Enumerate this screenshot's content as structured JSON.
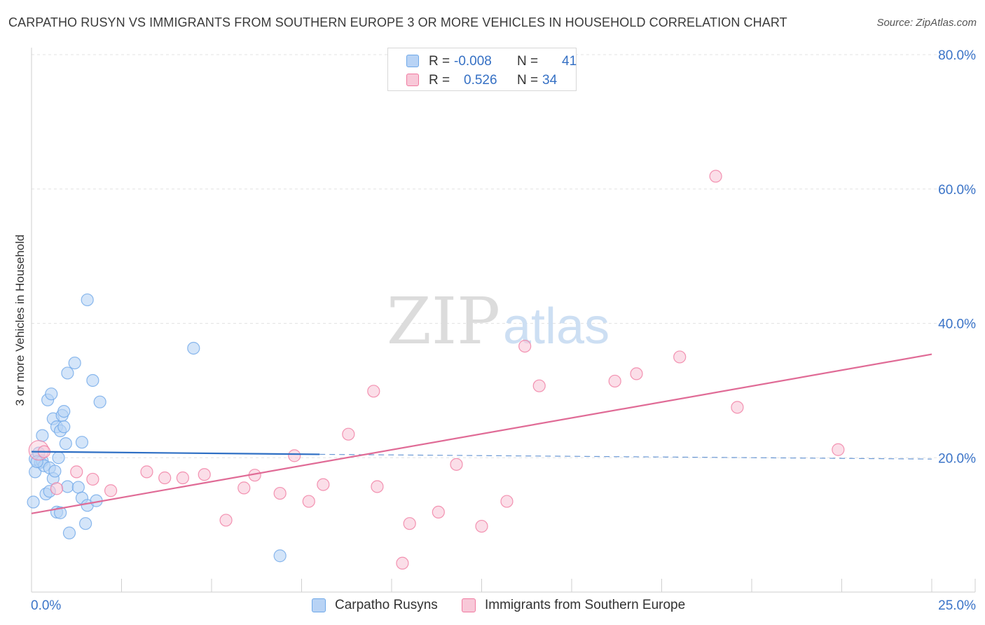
{
  "header": {
    "title": "CARPATHO RUSYN VS IMMIGRANTS FROM SOUTHERN EUROPE 3 OR MORE VEHICLES IN HOUSEHOLD CORRELATION CHART",
    "source": "Source: ZipAtlas.com"
  },
  "watermark": {
    "zip": "ZIP",
    "atlas": "atlas"
  },
  "legend": {
    "rows": [
      {
        "r_label": "R =",
        "r_value": "-0.008",
        "n_label": "N =",
        "n_value": "41"
      },
      {
        "r_label": "R =",
        "r_value": "0.526",
        "n_label": "N =",
        "n_value": "34"
      }
    ]
  },
  "colors": {
    "blue": "#6fa8e8",
    "blue_fill": "#b8d3f5",
    "blue_line": "#2e6fc4",
    "pink": "#f07aa0",
    "pink_fill": "#f8c8d8",
    "pink_line": "#e06b96",
    "tick_text": "#3b74c8",
    "grid": "#e3e3e3"
  },
  "chart_data": {
    "type": "scatter",
    "title": "CARPATHO RUSYN VS IMMIGRANTS FROM SOUTHERN EUROPE 3 OR MORE VEHICLES IN HOUSEHOLD CORRELATION CHART",
    "xlabel": "",
    "ylabel": "3 or more Vehicles in Household",
    "xlim": [
      0,
      25
    ],
    "ylim": [
      0,
      80
    ],
    "x_tick_labels": [
      "0.0%",
      "25.0%"
    ],
    "y_ticks": [
      20,
      40,
      60,
      80
    ],
    "y_tick_labels": [
      "20.0%",
      "40.0%",
      "60.0%",
      "80.0%"
    ],
    "legend_position": "bottom",
    "series": [
      {
        "name": "Carpatho Rusyns",
        "color": "#6fa8e8",
        "r": -0.008,
        "n": 41,
        "trend": {
          "x": [
            0,
            8
          ],
          "y": [
            20.9,
            20.5
          ],
          "dashed_to": 25,
          "dashed_y_end": 19.8
        },
        "points": [
          [
            0.05,
            13.4
          ],
          [
            0.1,
            17.9
          ],
          [
            0.1,
            19.8
          ],
          [
            0.2,
            20.7
          ],
          [
            0.25,
            19.3
          ],
          [
            0.3,
            23.3
          ],
          [
            0.3,
            19.5
          ],
          [
            0.4,
            14.6
          ],
          [
            0.35,
            18.8
          ],
          [
            0.5,
            15.0
          ],
          [
            0.45,
            28.6
          ],
          [
            0.55,
            29.5
          ],
          [
            0.5,
            18.5
          ],
          [
            0.6,
            25.8
          ],
          [
            0.6,
            16.9
          ],
          [
            0.65,
            18.0
          ],
          [
            0.7,
            11.9
          ],
          [
            0.75,
            20.0
          ],
          [
            0.7,
            24.6
          ],
          [
            0.8,
            11.8
          ],
          [
            0.8,
            24.0
          ],
          [
            0.85,
            26.3
          ],
          [
            0.9,
            26.9
          ],
          [
            0.9,
            24.6
          ],
          [
            0.95,
            22.1
          ],
          [
            1.0,
            32.6
          ],
          [
            1.0,
            15.7
          ],
          [
            1.05,
            8.8
          ],
          [
            1.2,
            34.1
          ],
          [
            1.3,
            15.6
          ],
          [
            1.4,
            14.0
          ],
          [
            1.4,
            22.3
          ],
          [
            1.5,
            10.2
          ],
          [
            1.55,
            12.9
          ],
          [
            1.55,
            43.5
          ],
          [
            1.7,
            31.5
          ],
          [
            1.8,
            13.6
          ],
          [
            1.9,
            28.3
          ],
          [
            4.5,
            36.3
          ],
          [
            6.9,
            5.4
          ],
          [
            0.15,
            19.4
          ]
        ]
      },
      {
        "name": "Immigrants from Southern Europe",
        "color": "#f07aa0",
        "r": 0.526,
        "n": 34,
        "trend": {
          "x": [
            0,
            25
          ],
          "y": [
            11.7,
            35.4
          ]
        },
        "points": [
          [
            0.2,
            21.1
          ],
          [
            0.7,
            15.4
          ],
          [
            1.25,
            17.9
          ],
          [
            1.7,
            16.8
          ],
          [
            2.2,
            15.1
          ],
          [
            3.2,
            17.9
          ],
          [
            3.7,
            17.0
          ],
          [
            4.2,
            17.0
          ],
          [
            4.8,
            17.5
          ],
          [
            5.4,
            10.7
          ],
          [
            5.9,
            15.5
          ],
          [
            6.2,
            17.4
          ],
          [
            6.9,
            14.7
          ],
          [
            7.3,
            20.3
          ],
          [
            7.7,
            13.5
          ],
          [
            8.1,
            16.0
          ],
          [
            8.8,
            23.5
          ],
          [
            9.5,
            29.9
          ],
          [
            9.6,
            15.7
          ],
          [
            10.3,
            4.3
          ],
          [
            10.5,
            10.2
          ],
          [
            11.3,
            11.9
          ],
          [
            11.8,
            19.0
          ],
          [
            12.5,
            9.8
          ],
          [
            13.2,
            13.5
          ],
          [
            13.7,
            36.6
          ],
          [
            14.1,
            30.7
          ],
          [
            16.2,
            31.4
          ],
          [
            16.8,
            32.5
          ],
          [
            18.0,
            35.0
          ],
          [
            19.0,
            61.9
          ],
          [
            19.6,
            27.5
          ],
          [
            22.4,
            21.2
          ],
          [
            0.35,
            20.9
          ]
        ]
      }
    ]
  },
  "bottom_legend": {
    "items": [
      {
        "label": "Carpatho Rusyns"
      },
      {
        "label": "Immigrants from Southern Europe"
      }
    ]
  }
}
